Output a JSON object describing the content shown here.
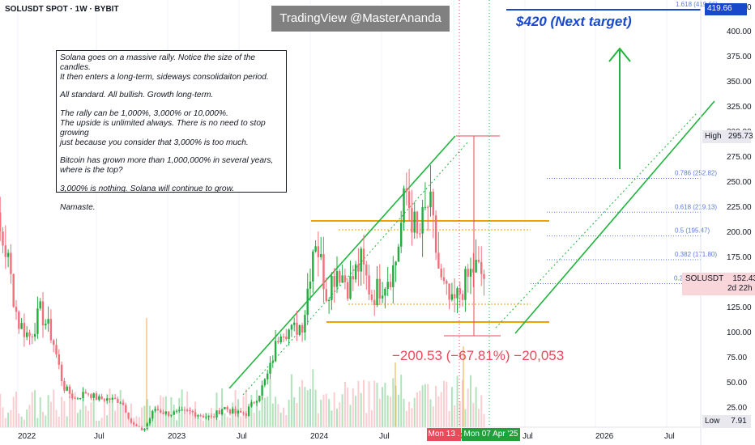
{
  "ticker": "SOLUSDT SPOT · 1W · BYBIT",
  "watermark": "TradingView @MasterAnanda",
  "note_paragraphs": [
    "Solana goes on a massive rally. Notice the size of the candles.\nIt then enters a long-term, sideways consolidaiton period.",
    "All standard. All bullish. Growth long-term.",
    "The rally can be 1,000%, 3,000% or 10,000%.\nThe upside is unlimited always. There is no need to stop growing\njust because you consider that 3,000% is too much.",
    "Bitcoin has grown more than 1,000,000% in several years,\nwhere is the top?",
    "3,000% is nothing. Solana will continue to grow.",
    "Namaste."
  ],
  "target_text": "$420 (Next target)",
  "measure_text": "−200.53 (−67.81%) −20,053",
  "tags": {
    "price_tag": "419.66",
    "high_label": "High",
    "high_value": "295.73",
    "symbol": "SOLUSDT",
    "last_price": "152.43",
    "countdown": "2d 22h",
    "low_label": "Low",
    "low_value": "7.91",
    "date_start": "Mon 13 .",
    "date_end": "Mon 07 Apr '25"
  },
  "colors": {
    "up": "#22ab3e",
    "down": "#f26f7b",
    "fib": "#5a7bd8",
    "orange": "#f0a000",
    "channel": "#1fb53c",
    "target": "#1848cc"
  },
  "chart_data": {
    "type": "candlestick",
    "y_axis": {
      "scale": "log",
      "ylim": [
        17,
        430
      ],
      "tick_labels": [
        "425.00",
        "400.00",
        "375.00",
        "350.00",
        "325.00",
        "300.00",
        "275.00",
        "250.00",
        "225.00",
        "200.00",
        "175.00",
        "150.00",
        "125.00",
        "100.00",
        "75.00",
        "50.00",
        "25.00"
      ]
    },
    "x_axis": {
      "tick_labels": [
        "2022",
        "Jul",
        "2023",
        "Jul",
        "2024",
        "Jul",
        "2025",
        "Jul",
        "2026",
        "Jul"
      ]
    },
    "fib_levels": [
      {
        "label": "1.618 (419.66)",
        "value": 419.66
      },
      {
        "label": "0.786 (252.82)",
        "value": 252.82
      },
      {
        "label": "0.618 (219.13)",
        "value": 219.13
      },
      {
        "label": "0.5 (195.47)",
        "value": 195.47
      },
      {
        "label": "0.382 (171.80)",
        "value": 171.8
      },
      {
        "label": "0.2",
        "value": 148.0
      }
    ],
    "series": [
      {
        "x": "2021-11",
        "y": 210
      },
      {
        "x": "2021-12",
        "y": 180
      },
      {
        "x": "2022-01",
        "y": 110
      },
      {
        "x": "2022-02",
        "y": 95
      },
      {
        "x": "2022-03",
        "y": 120
      },
      {
        "x": "2022-04",
        "y": 95
      },
      {
        "x": "2022-05",
        "y": 45
      },
      {
        "x": "2022-06",
        "y": 33
      },
      {
        "x": "2022-07",
        "y": 40
      },
      {
        "x": "2022-08",
        "y": 33
      },
      {
        "x": "2022-09",
        "y": 33
      },
      {
        "x": "2022-10",
        "y": 31
      },
      {
        "x": "2022-11",
        "y": 14
      },
      {
        "x": "2022-12",
        "y": 10
      },
      {
        "x": "2023-01",
        "y": 24
      },
      {
        "x": "2023-02",
        "y": 21
      },
      {
        "x": "2023-03",
        "y": 21
      },
      {
        "x": "2023-04",
        "y": 22
      },
      {
        "x": "2023-05",
        "y": 20
      },
      {
        "x": "2023-06",
        "y": 18
      },
      {
        "x": "2023-07",
        "y": 25
      },
      {
        "x": "2023-08",
        "y": 21
      },
      {
        "x": "2023-09",
        "y": 21
      },
      {
        "x": "2023-10",
        "y": 35
      },
      {
        "x": "2023-11",
        "y": 60
      },
      {
        "x": "2023-12",
        "y": 105
      },
      {
        "x": "2024-01",
        "y": 100
      },
      {
        "x": "2024-02",
        "y": 110
      },
      {
        "x": "2024-03",
        "y": 200
      },
      {
        "x": "2024-04",
        "y": 140
      },
      {
        "x": "2024-05",
        "y": 165
      },
      {
        "x": "2024-06",
        "y": 145
      },
      {
        "x": "2024-07",
        "y": 170
      },
      {
        "x": "2024-08",
        "y": 135
      },
      {
        "x": "2024-09",
        "y": 150
      },
      {
        "x": "2024-10",
        "y": 165
      },
      {
        "x": "2024-11",
        "y": 240
      },
      {
        "x": "2024-12",
        "y": 190
      },
      {
        "x": "2025-01",
        "y": 230
      },
      {
        "x": "2025-02",
        "y": 150
      },
      {
        "x": "2025-03",
        "y": 125
      },
      {
        "x": "2025-04",
        "y": 145
      },
      {
        "x": "2025-05",
        "y": 165
      },
      {
        "x": "2025-06",
        "y": 152
      }
    ],
    "high": 295.73,
    "low": 7.91,
    "last": 152.43
  }
}
